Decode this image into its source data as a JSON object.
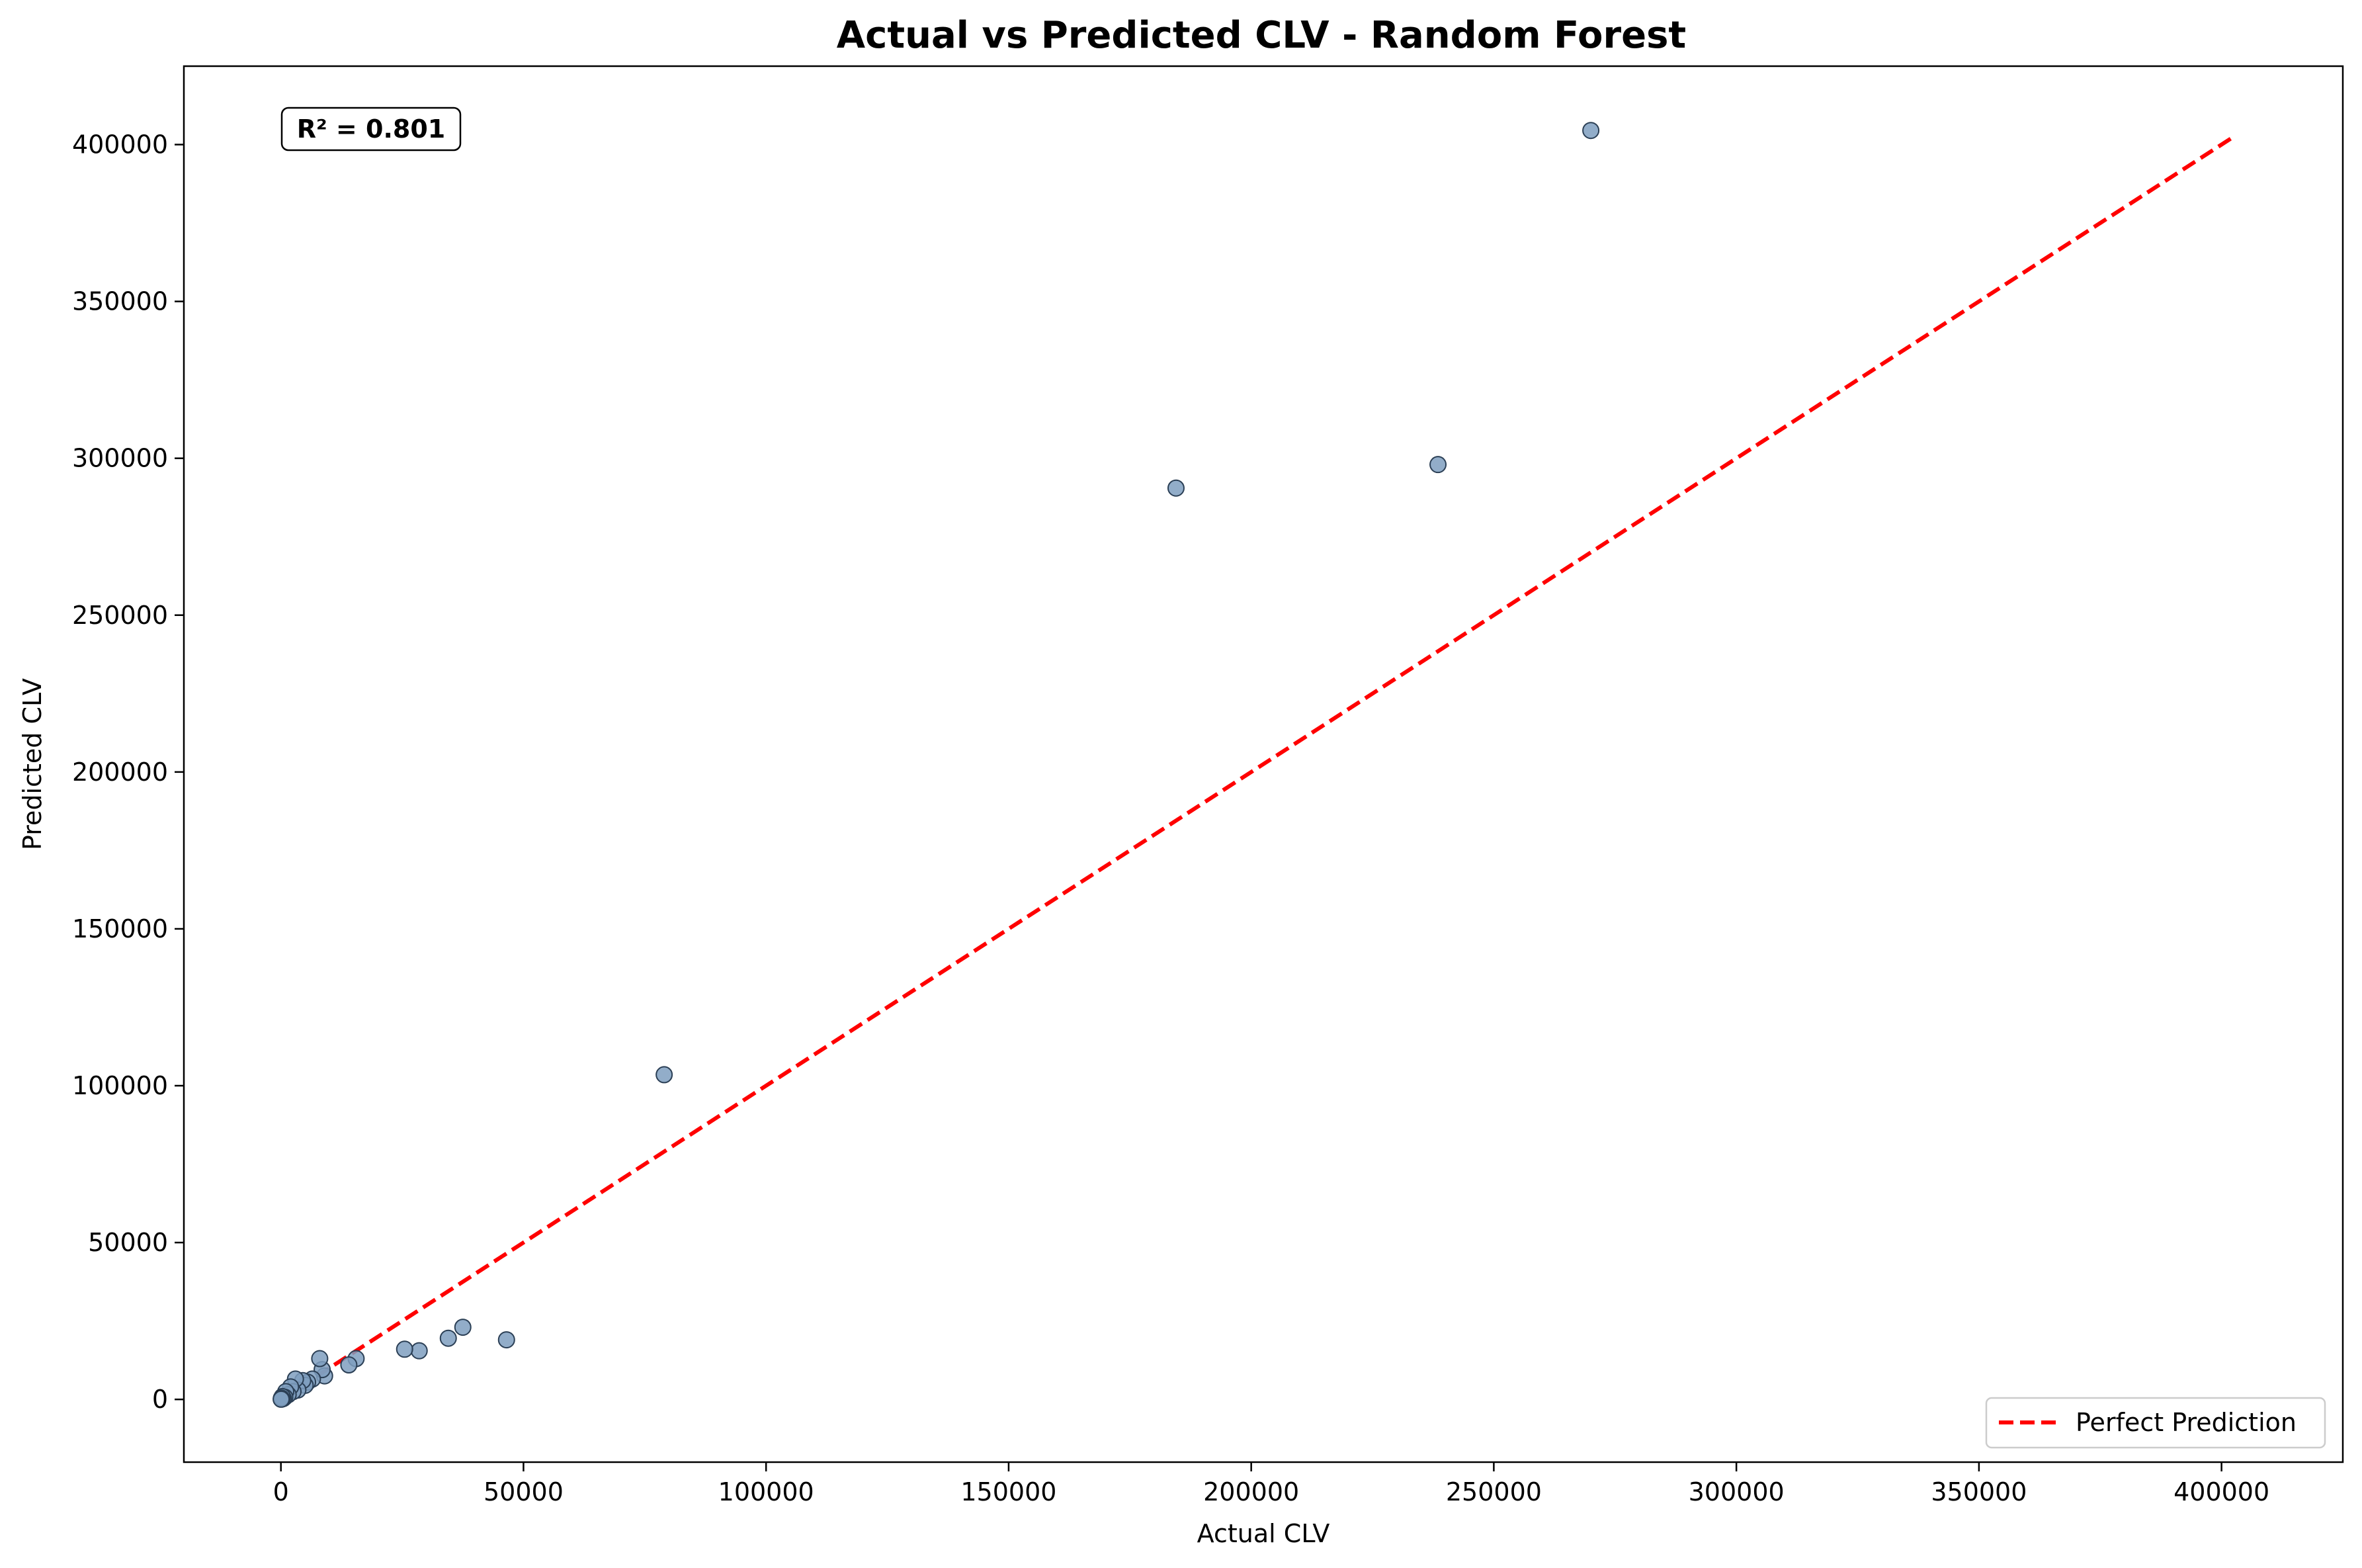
{
  "chart_data": {
    "type": "scatter",
    "title": "Actual vs Predicted CLV - Random Forest",
    "xlabel": "Actual CLV",
    "ylabel": "Predicted CLV",
    "xlim": [
      -20000,
      425000
    ],
    "ylim": [
      -20000,
      425000
    ],
    "x_ticks": [
      0,
      50000,
      100000,
      150000,
      200000,
      250000,
      300000,
      350000,
      400000
    ],
    "y_ticks": [
      0,
      50000,
      100000,
      150000,
      200000,
      250000,
      300000,
      350000,
      400000
    ],
    "grid": false,
    "annotation": "R² = 0.801",
    "legend": {
      "position": "bottom-right",
      "entries": [
        "Perfect Prediction"
      ]
    },
    "colors": {
      "points": "#7f9fc0",
      "point_edge": "#2b3f55",
      "reference_line": "#ff0000"
    },
    "reference_line": {
      "style": "dashed",
      "from": [
        0,
        0
      ],
      "to": [
        403000,
        403000
      ]
    },
    "points": [
      {
        "x": 270000,
        "y": 404500
      },
      {
        "x": 238500,
        "y": 298000
      },
      {
        "x": 184500,
        "y": 290500
      },
      {
        "x": 79000,
        "y": 103500
      },
      {
        "x": 46500,
        "y": 19000
      },
      {
        "x": 37500,
        "y": 23000
      },
      {
        "x": 34500,
        "y": 19500
      },
      {
        "x": 28500,
        "y": 15500
      },
      {
        "x": 25500,
        "y": 16000
      },
      {
        "x": 15500,
        "y": 13000
      },
      {
        "x": 14000,
        "y": 11000
      },
      {
        "x": 9000,
        "y": 7500
      },
      {
        "x": 8500,
        "y": 9500
      },
      {
        "x": 8000,
        "y": 13000
      },
      {
        "x": 6500,
        "y": 6500
      },
      {
        "x": 5500,
        "y": 5500
      },
      {
        "x": 5000,
        "y": 4500
      },
      {
        "x": 4500,
        "y": 6000
      },
      {
        "x": 3500,
        "y": 3000
      },
      {
        "x": 3000,
        "y": 6500
      },
      {
        "x": 2500,
        "y": 2500
      },
      {
        "x": 2000,
        "y": 4000
      },
      {
        "x": 1500,
        "y": 1500
      },
      {
        "x": 1000,
        "y": 2500
      },
      {
        "x": 800,
        "y": 700
      },
      {
        "x": 500,
        "y": 300
      },
      {
        "x": 300,
        "y": 900
      },
      {
        "x": 200,
        "y": 150
      },
      {
        "x": 100,
        "y": 400
      },
      {
        "x": 50,
        "y": 50
      }
    ]
  }
}
